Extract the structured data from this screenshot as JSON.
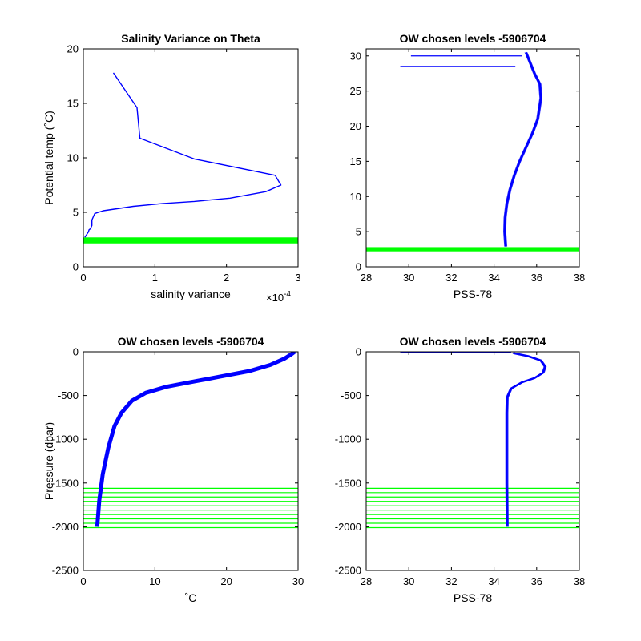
{
  "chart_data": [
    {
      "type": "line",
      "title": "Salinity Variance on Theta",
      "xlabel": "salinity variance",
      "ylabel": "Potential temp (˚C)",
      "x_exponent_label": "×10",
      "x_exponent_power": "-4",
      "xlim": [
        0,
        3
      ],
      "ylim": [
        0,
        20
      ],
      "xticks": [
        "0",
        "1",
        "2",
        "3"
      ],
      "yticks": [
        "0",
        "5",
        "10",
        "15",
        "20"
      ],
      "series": [
        {
          "color": "#0000ff",
          "x": [
            0.42,
            0.75,
            0.79,
            1.55,
            2.68,
            2.76,
            2.55,
            2.05,
            1.55,
            1.1,
            0.7,
            0.28,
            0.16,
            0.12,
            0.12,
            0.1,
            0.08,
            0.07,
            0.02
          ],
          "y": [
            17.8,
            14.6,
            11.8,
            9.9,
            8.4,
            7.5,
            6.9,
            6.3,
            6.0,
            5.8,
            5.55,
            5.15,
            4.9,
            4.3,
            3.8,
            3.5,
            3.4,
            3.2,
            2.7
          ]
        }
      ],
      "bands": [
        {
          "color": "#00ff00",
          "y_from": 2.15,
          "y_to": 2.7
        }
      ]
    },
    {
      "type": "line",
      "title": "OW chosen levels -5906704",
      "xlabel": "PSS-78",
      "ylabel": "",
      "xlim": [
        28,
        38
      ],
      "ylim": [
        0,
        31
      ],
      "xticks": [
        "28",
        "30",
        "32",
        "34",
        "36",
        "38"
      ],
      "yticks": [
        "0",
        "5",
        "10",
        "15",
        "20",
        "25",
        "30"
      ],
      "series": [
        {
          "color": "#0000ff",
          "x": [
            34.55,
            34.5,
            34.52,
            34.6,
            34.75,
            34.95,
            35.2,
            35.5,
            35.8,
            36.05,
            36.2,
            36.15,
            35.9,
            35.7,
            35.5
          ],
          "y": [
            2.9,
            5.0,
            7.0,
            9.0,
            11.0,
            13.0,
            15.0,
            17.0,
            19.0,
            21.0,
            24.0,
            26.0,
            27.5,
            29.0,
            30.5
          ]
        }
      ],
      "horizontal_spikes": [
        {
          "x_from": 30.1,
          "x_to": 35.3,
          "y": 30.0
        },
        {
          "x_from": 29.6,
          "x_to": 35.0,
          "y": 28.5
        }
      ],
      "bands": [
        {
          "color": "#00ff00",
          "y_from": 2.2,
          "y_to": 2.8
        }
      ]
    },
    {
      "type": "line",
      "title": "OW chosen levels -5906704",
      "xlabel": "˚C",
      "ylabel": "Pressure (dbar)",
      "xlim": [
        0,
        31
      ],
      "ylim": [
        -2500,
        0
      ],
      "xticks": [
        "0",
        "10",
        "20",
        "30"
      ],
      "yticks": [
        "-2500",
        "-2000",
        "-1500",
        "-1000",
        "-500",
        "0"
      ],
      "series": [
        {
          "color": "#0000ff",
          "x": [
            2.0,
            2.3,
            2.8,
            3.6,
            4.5,
            5.5,
            7.0,
            9.0,
            12.0,
            16.0,
            20.0,
            24.0,
            27.0,
            29.0,
            30.0,
            30.5
          ],
          "y": [
            -2000,
            -1700,
            -1400,
            -1100,
            -850,
            -700,
            -560,
            -470,
            -400,
            -340,
            -280,
            -220,
            -150,
            -80,
            -30,
            0
          ]
        }
      ],
      "hlines": {
        "color": "#00ff00",
        "y": [
          -1560,
          -1610,
          -1660,
          -1710,
          -1760,
          -1810,
          -1860,
          -1910,
          -1960,
          -2010
        ]
      }
    },
    {
      "type": "line",
      "title": "OW chosen levels -5906704",
      "xlabel": "PSS-78",
      "ylabel": "",
      "xlim": [
        28,
        38
      ],
      "ylim": [
        -2500,
        0
      ],
      "xticks": [
        "28",
        "30",
        "32",
        "34",
        "36",
        "38"
      ],
      "yticks": [
        "-2500",
        "-2000",
        "-1500",
        "-1000",
        "-500",
        "0"
      ],
      "series": [
        {
          "color": "#0000ff",
          "x": [
            34.62,
            34.6,
            34.6,
            34.6,
            34.62,
            34.8,
            35.3,
            35.9,
            36.3,
            36.4,
            36.2,
            35.6,
            34.9
          ],
          "y": [
            -2000,
            -1500,
            -1000,
            -700,
            -520,
            -420,
            -350,
            -300,
            -240,
            -170,
            -100,
            -50,
            -15
          ]
        }
      ],
      "horizontal_spikes": [
        {
          "x_from": 29.6,
          "x_to": 34.8,
          "y": -8
        }
      ],
      "hlines": {
        "color": "#00ff00",
        "y": [
          -1560,
          -1610,
          -1660,
          -1710,
          -1760,
          -1810,
          -1860,
          -1910,
          -1960,
          -2010
        ]
      }
    }
  ]
}
